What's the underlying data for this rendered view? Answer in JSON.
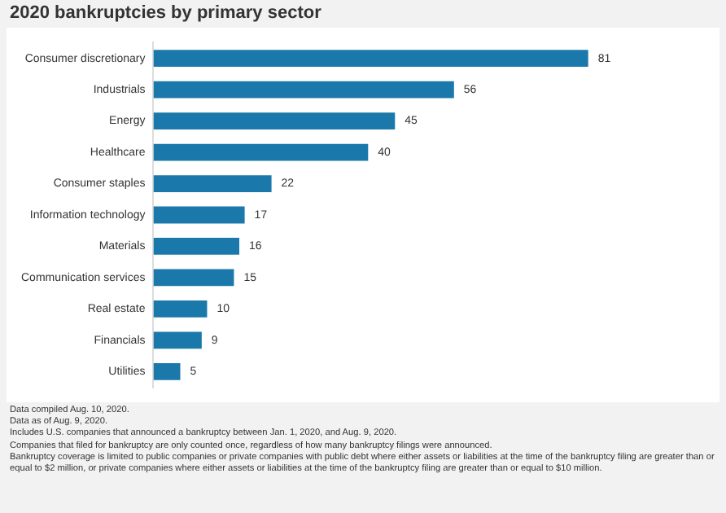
{
  "chart_data": {
    "type": "bar",
    "orientation": "horizontal",
    "title": "2020 bankruptcies by primary sector",
    "categories": [
      "Consumer discretionary",
      "Industrials",
      "Energy",
      "Healthcare",
      "Consumer staples",
      "Information technology",
      "Materials",
      "Communication services",
      "Real estate",
      "Financials",
      "Utilities"
    ],
    "values": [
      81,
      56,
      45,
      40,
      22,
      17,
      16,
      15,
      10,
      9,
      5
    ],
    "color": "#1b78aa",
    "data_labels": true,
    "legend": false,
    "annotations": [
      "Data compiled Aug. 10, 2020.",
      "Data as of Aug. 9, 2020.",
      "Includes U.S. companies that announced a bankruptcy between Jan. 1, 2020, and Aug. 9, 2020.",
      "Companies that filed for bankruptcy are only counted once, regardless of how many bankruptcy filings were announced.",
      "Bankruptcy coverage is limited to public companies or private companies with public debt where either assets or liabilities at the time of the bankruptcy filing are greater than or equal to $2 million, or private companies where either assets or liabilities at the time of the bankruptcy filing are greater than or equal to $10 million."
    ]
  }
}
